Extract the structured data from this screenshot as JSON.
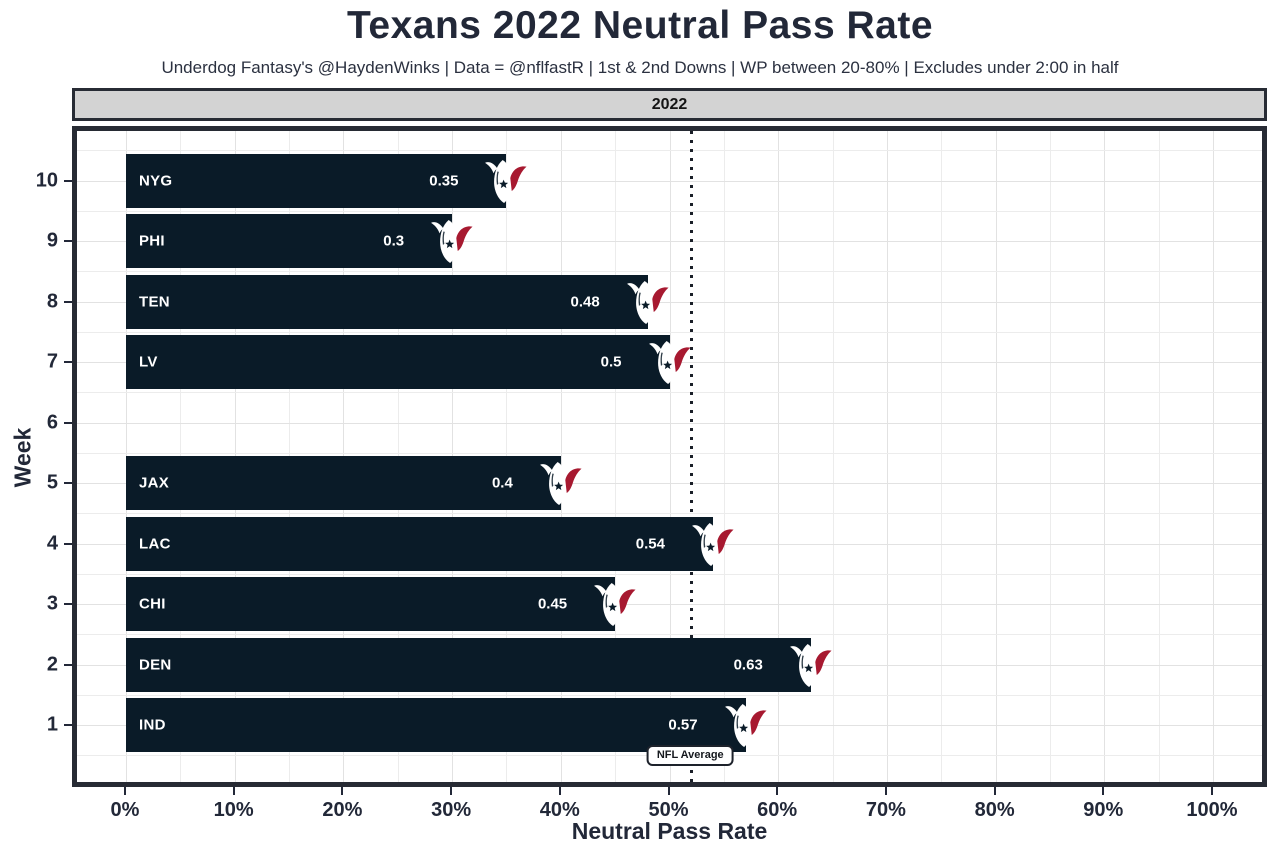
{
  "chart_data": {
    "type": "bar",
    "orientation": "horizontal",
    "title": "Texans 2022 Neutral Pass Rate",
    "subtitle": "Underdog Fantasy's @HaydenWinks | Data = @nflfastR | 1st & 2nd Downs | WP between 20-80% | Excludes under 2:00 in half",
    "facet_label": "2022",
    "xlabel": "Neutral Pass Rate",
    "ylabel": "Week",
    "xlim": [
      0,
      1.0
    ],
    "x_tick_values": [
      0,
      0.1,
      0.2,
      0.3,
      0.4,
      0.5,
      0.6,
      0.7,
      0.8,
      0.9,
      1.0
    ],
    "x_tick_labels": [
      "0%",
      "10%",
      "20%",
      "30%",
      "40%",
      "50%",
      "60%",
      "70%",
      "80%",
      "90%",
      "100%"
    ],
    "grid": {
      "show": true,
      "minor_every": 0.05,
      "major_every": 0.1
    },
    "legend": "none",
    "bar_icon": "texans-bull-logo",
    "bars": [
      {
        "week": "10",
        "opponent": "NYG",
        "value": 0.35,
        "value_label": "0.35"
      },
      {
        "week": "9",
        "opponent": "PHI",
        "value": 0.3,
        "value_label": "0.3"
      },
      {
        "week": "8",
        "opponent": "TEN",
        "value": 0.48,
        "value_label": "0.48"
      },
      {
        "week": "7",
        "opponent": "LV",
        "value": 0.5,
        "value_label": "0.5"
      },
      {
        "week": "6",
        "opponent": null,
        "value": null,
        "value_label": null
      },
      {
        "week": "5",
        "opponent": "JAX",
        "value": 0.4,
        "value_label": "0.4"
      },
      {
        "week": "4",
        "opponent": "LAC",
        "value": 0.54,
        "value_label": "0.54"
      },
      {
        "week": "3",
        "opponent": "CHI",
        "value": 0.45,
        "value_label": "0.45"
      },
      {
        "week": "2",
        "opponent": "DEN",
        "value": 0.63,
        "value_label": "0.63"
      },
      {
        "week": "1",
        "opponent": "IND",
        "value": 0.57,
        "value_label": "0.57"
      }
    ],
    "reference_line": {
      "value": 0.52,
      "label": "NFL Average",
      "linetype": "dotted"
    }
  },
  "colors": {
    "bar_fill": "#0a1b28",
    "bar_text": "#ffffff",
    "title_text": "#222838",
    "strip_bg": "#d3d3d3",
    "panel_border": "#272b34",
    "grid_major": "#e2e2e2",
    "grid_minor": "#ececec",
    "logo_red": "#a71930",
    "logo_white": "#ffffff",
    "reference_line": "#1a1f28"
  }
}
